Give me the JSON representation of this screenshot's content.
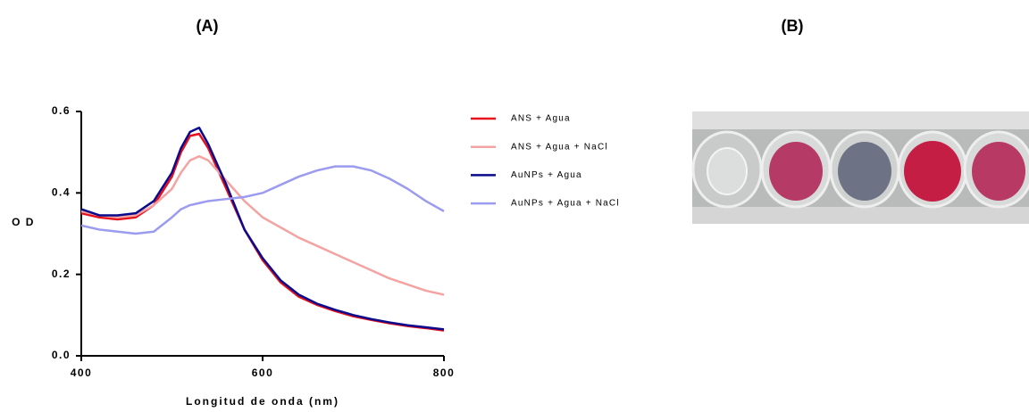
{
  "chart_data": {
    "type": "line",
    "title": "(A)",
    "x_label": "Longitud de onda (nm)",
    "y_label": "O D",
    "x": [
      400,
      420,
      440,
      460,
      480,
      500,
      510,
      520,
      530,
      540,
      560,
      580,
      600,
      620,
      640,
      660,
      680,
      700,
      720,
      740,
      760,
      780,
      800
    ],
    "series": [
      {
        "name": "ANS + Agua",
        "color": "#e8101c",
        "values": [
          0.35,
          0.34,
          0.335,
          0.34,
          0.37,
          0.44,
          0.5,
          0.54,
          0.545,
          0.51,
          0.41,
          0.31,
          0.235,
          0.18,
          0.145,
          0.125,
          0.11,
          0.097,
          0.088,
          0.08,
          0.073,
          0.068,
          0.062
        ]
      },
      {
        "name": "ANS + Agua + NaCl",
        "color": "#f4a3a3",
        "values": [
          0.355,
          0.345,
          0.34,
          0.345,
          0.37,
          0.41,
          0.45,
          0.48,
          0.49,
          0.48,
          0.43,
          0.38,
          0.34,
          0.315,
          0.29,
          0.27,
          0.25,
          0.23,
          0.21,
          0.19,
          0.175,
          0.16,
          0.15
        ]
      },
      {
        "name": "AuNPs + Agua",
        "color": "#0a0a8c",
        "values": [
          0.36,
          0.345,
          0.345,
          0.35,
          0.38,
          0.45,
          0.51,
          0.55,
          0.56,
          0.52,
          0.42,
          0.31,
          0.24,
          0.185,
          0.15,
          0.128,
          0.113,
          0.1,
          0.09,
          0.082,
          0.075,
          0.07,
          0.065
        ]
      },
      {
        "name": "AuNPs + Agua + NaCl",
        "color": "#9b9bef",
        "values": [
          0.32,
          0.31,
          0.305,
          0.3,
          0.305,
          0.34,
          0.36,
          0.37,
          0.375,
          0.38,
          0.385,
          0.39,
          0.4,
          0.42,
          0.44,
          0.455,
          0.465,
          0.465,
          0.455,
          0.435,
          0.41,
          0.38,
          0.355
        ]
      }
    ],
    "xlim": [
      400,
      800
    ],
    "xticks": [
      400,
      600,
      800
    ],
    "ylim": [
      0,
      0.6
    ],
    "yticks": [
      {
        "value": 0,
        "label": "0.0"
      },
      0.2,
      0.4,
      0.6
    ],
    "grid": false
  },
  "photo_label": "(B)"
}
